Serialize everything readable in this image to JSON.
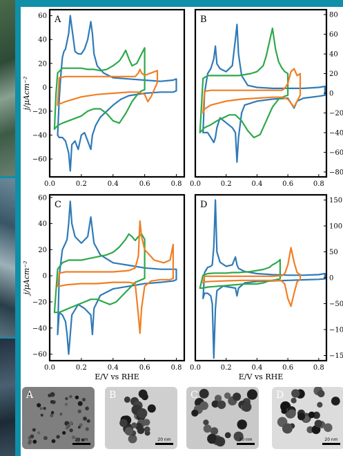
{
  "chart_data": [
    {
      "type": "line",
      "panel_label": "A",
      "xlabel": "",
      "ylabel": "j/μAcm⁻²",
      "xlim": [
        0.0,
        0.85
      ],
      "ylim": [
        -75,
        65
      ],
      "yticks": [
        -60,
        -40,
        -20,
        0,
        20,
        40,
        60
      ],
      "yaxis_side": "left",
      "xticks": [
        0.0,
        0.2,
        0.4,
        0.6,
        0.8
      ],
      "series": [
        {
          "color": "#2f7ab8",
          "x": [
            0.05,
            0.06,
            0.07,
            0.08,
            0.09,
            0.1,
            0.12,
            0.13,
            0.14,
            0.16,
            0.18,
            0.2,
            0.22,
            0.24,
            0.26,
            0.27,
            0.28,
            0.3,
            0.34,
            0.4,
            0.5,
            0.6,
            0.7,
            0.78,
            0.8,
            0.8,
            0.78,
            0.7,
            0.6,
            0.5,
            0.45,
            0.4,
            0.36,
            0.32,
            0.29,
            0.27,
            0.26,
            0.24,
            0.22,
            0.2,
            0.18,
            0.16,
            0.14,
            0.13,
            0.12,
            0.1,
            0.08,
            0.06,
            0.05
          ],
          "y": [
            -40,
            -10,
            10,
            25,
            30,
            32,
            45,
            60,
            50,
            30,
            28,
            28,
            32,
            40,
            55,
            45,
            28,
            18,
            12,
            8,
            7,
            6,
            5,
            6,
            7,
            -3,
            -4,
            -4,
            -5,
            -7,
            -10,
            -15,
            -20,
            -25,
            -32,
            -40,
            -52,
            -45,
            -38,
            -40,
            -52,
            -45,
            -48,
            -70,
            -55,
            -45,
            -42,
            -42,
            -40
          ]
        },
        {
          "color": "#2ea84a",
          "x": [
            0.03,
            0.04,
            0.05,
            0.08,
            0.12,
            0.16,
            0.2,
            0.24,
            0.28,
            0.32,
            0.36,
            0.4,
            0.44,
            0.46,
            0.48,
            0.5,
            0.52,
            0.55,
            0.58,
            0.6,
            0.6,
            0.58,
            0.56,
            0.52,
            0.48,
            0.44,
            0.4,
            0.36,
            0.32,
            0.28,
            0.24,
            0.2,
            0.16,
            0.12,
            0.08,
            0.05,
            0.03
          ],
          "y": [
            -35,
            -5,
            12,
            16,
            16,
            16,
            16,
            15,
            15,
            14,
            15,
            18,
            22,
            26,
            31,
            24,
            18,
            20,
            28,
            33,
            -2,
            -3,
            -5,
            -12,
            -22,
            -30,
            -28,
            -22,
            -18,
            -18,
            -20,
            -24,
            -26,
            -28,
            -30,
            -32,
            -35
          ]
        },
        {
          "color": "#f07f24",
          "x": [
            0.05,
            0.06,
            0.1,
            0.2,
            0.3,
            0.4,
            0.5,
            0.54,
            0.56,
            0.57,
            0.58,
            0.6,
            0.64,
            0.68,
            0.68,
            0.66,
            0.64,
            0.62,
            0.6,
            0.56,
            0.5,
            0.4,
            0.3,
            0.2,
            0.1,
            0.06,
            0.05
          ],
          "y": [
            -15,
            8,
            9,
            9,
            9,
            9,
            9,
            9,
            12,
            15,
            12,
            10,
            12,
            14,
            4,
            -2,
            -8,
            -12,
            -6,
            -4,
            -4,
            -5,
            -6,
            -8,
            -12,
            -14,
            -15
          ]
        }
      ]
    },
    {
      "type": "line",
      "panel_label": "B",
      "xlabel": "",
      "ylabel": "",
      "xlim": [
        0.0,
        0.85
      ],
      "ylim": [
        -85,
        85
      ],
      "yticks": [
        -80,
        -60,
        -40,
        -20,
        0,
        20,
        40,
        60,
        80
      ],
      "yaxis_side": "right",
      "xticks": [
        0.0,
        0.2,
        0.4,
        0.6,
        0.8
      ],
      "series": [
        {
          "color": "#2f7ab8",
          "x": [
            0.05,
            0.06,
            0.08,
            0.1,
            0.12,
            0.13,
            0.14,
            0.16,
            0.2,
            0.24,
            0.26,
            0.27,
            0.28,
            0.3,
            0.34,
            0.4,
            0.5,
            0.6,
            0.7,
            0.8,
            0.84,
            0.84,
            0.8,
            0.7,
            0.66,
            0.64,
            0.62,
            0.6,
            0.5,
            0.4,
            0.32,
            0.3,
            0.28,
            0.27,
            0.26,
            0.24,
            0.2,
            0.16,
            0.14,
            0.13,
            0.12,
            0.1,
            0.08,
            0.06,
            0.05
          ],
          "y": [
            -40,
            0,
            20,
            25,
            35,
            48,
            30,
            25,
            22,
            28,
            55,
            70,
            40,
            18,
            8,
            6,
            5,
            5,
            5,
            6,
            7,
            -2,
            -3,
            -5,
            -8,
            -15,
            -10,
            -5,
            -6,
            -8,
            -12,
            -20,
            -45,
            -70,
            -40,
            -35,
            -30,
            -25,
            -35,
            -45,
            -50,
            -45,
            -40,
            -40,
            -40
          ]
        },
        {
          "color": "#2ea84a",
          "x": [
            0.03,
            0.05,
            0.08,
            0.12,
            0.16,
            0.2,
            0.24,
            0.28,
            0.32,
            0.36,
            0.4,
            0.44,
            0.46,
            0.48,
            0.5,
            0.52,
            0.54,
            0.56,
            0.58,
            0.6,
            0.6,
            0.58,
            0.54,
            0.5,
            0.46,
            0.42,
            0.38,
            0.34,
            0.3,
            0.26,
            0.22,
            0.18,
            0.14,
            0.1,
            0.06,
            0.03
          ],
          "y": [
            -40,
            15,
            18,
            18,
            18,
            18,
            18,
            18,
            19,
            20,
            22,
            28,
            38,
            52,
            66,
            45,
            32,
            26,
            22,
            20,
            -2,
            -3,
            -6,
            -14,
            -28,
            -42,
            -45,
            -38,
            -28,
            -22,
            -22,
            -25,
            -28,
            -32,
            -35,
            -40
          ]
        },
        {
          "color": "#f07f24",
          "x": [
            0.05,
            0.06,
            0.1,
            0.2,
            0.3,
            0.4,
            0.5,
            0.56,
            0.58,
            0.6,
            0.62,
            0.64,
            0.66,
            0.68,
            0.68,
            0.66,
            0.64,
            0.62,
            0.6,
            0.56,
            0.5,
            0.4,
            0.3,
            0.2,
            0.1,
            0.06,
            0.05
          ],
          "y": [
            -20,
            2,
            3,
            3,
            3,
            3,
            3,
            3,
            5,
            10,
            22,
            25,
            18,
            20,
            -2,
            -8,
            -14,
            -10,
            -6,
            -4,
            -4,
            -5,
            -6,
            -8,
            -12,
            -16,
            -20
          ]
        }
      ]
    },
    {
      "type": "line",
      "panel_label": "C",
      "xlabel": "E/V vs RHE",
      "ylabel": "j/μAcm⁻²",
      "xlim": [
        0.0,
        0.85
      ],
      "ylim": [
        -65,
        62
      ],
      "yticks": [
        -60,
        -40,
        -20,
        0,
        20,
        40,
        60
      ],
      "yaxis_side": "left",
      "xticks": [
        0.0,
        0.2,
        0.4,
        0.6,
        0.8
      ],
      "series": [
        {
          "color": "#2f7ab8",
          "x": [
            0.05,
            0.06,
            0.08,
            0.1,
            0.11,
            0.12,
            0.13,
            0.14,
            0.16,
            0.2,
            0.24,
            0.26,
            0.27,
            0.28,
            0.32,
            0.4,
            0.5,
            0.6,
            0.7,
            0.78,
            0.8,
            0.8,
            0.78,
            0.7,
            0.6,
            0.5,
            0.4,
            0.32,
            0.28,
            0.27,
            0.26,
            0.22,
            0.18,
            0.14,
            0.12,
            0.11,
            0.1,
            0.08,
            0.06,
            0.05
          ],
          "y": [
            -45,
            0,
            20,
            25,
            28,
            40,
            57,
            40,
            30,
            25,
            30,
            45,
            35,
            25,
            16,
            10,
            8,
            6,
            5,
            5,
            5,
            -3,
            -4,
            -5,
            -6,
            -8,
            -10,
            -15,
            -25,
            -45,
            -30,
            -25,
            -22,
            -30,
            -60,
            -45,
            -35,
            -30,
            -28,
            -45
          ]
        },
        {
          "color": "#2ea84a",
          "x": [
            0.03,
            0.05,
            0.08,
            0.12,
            0.16,
            0.2,
            0.24,
            0.28,
            0.32,
            0.36,
            0.4,
            0.44,
            0.48,
            0.5,
            0.52,
            0.54,
            0.56,
            0.58,
            0.6,
            0.6,
            0.58,
            0.54,
            0.5,
            0.46,
            0.42,
            0.38,
            0.34,
            0.3,
            0.26,
            0.22,
            0.18,
            0.14,
            0.1,
            0.06,
            0.03
          ],
          "y": [
            -28,
            5,
            10,
            12,
            12,
            12,
            13,
            14,
            15,
            16,
            18,
            22,
            28,
            32,
            30,
            27,
            30,
            32,
            28,
            -2,
            -3,
            -5,
            -10,
            -15,
            -20,
            -22,
            -20,
            -18,
            -18,
            -20,
            -22,
            -24,
            -26,
            -28,
            -28
          ]
        },
        {
          "color": "#f07f24",
          "x": [
            0.05,
            0.06,
            0.1,
            0.2,
            0.3,
            0.4,
            0.5,
            0.54,
            0.56,
            0.57,
            0.58,
            0.6,
            0.66,
            0.72,
            0.76,
            0.78,
            0.78,
            0.76,
            0.7,
            0.64,
            0.6,
            0.58,
            0.57,
            0.56,
            0.54,
            0.5,
            0.4,
            0.3,
            0.2,
            0.1,
            0.06,
            0.05
          ],
          "y": [
            -8,
            2,
            3,
            3,
            3,
            3,
            4,
            6,
            15,
            42,
            30,
            20,
            12,
            10,
            12,
            24,
            -2,
            -3,
            -3,
            -4,
            -8,
            -25,
            -44,
            -30,
            -6,
            -5,
            -5,
            -6,
            -6,
            -7,
            -8,
            -8
          ]
        }
      ]
    },
    {
      "type": "line",
      "panel_label": "D",
      "xlabel": "E/V vs RHE",
      "ylabel": "",
      "xlim": [
        0.0,
        0.85
      ],
      "ylim": [
        -160,
        160
      ],
      "yticks": [
        -150,
        -100,
        -50,
        0,
        50,
        100,
        150
      ],
      "yaxis_side": "right",
      "xticks": [
        0.0,
        0.2,
        0.4,
        0.6,
        0.8
      ],
      "series": [
        {
          "color": "#2f7ab8",
          "x": [
            0.05,
            0.06,
            0.08,
            0.1,
            0.11,
            0.12,
            0.13,
            0.14,
            0.16,
            0.2,
            0.24,
            0.26,
            0.27,
            0.28,
            0.32,
            0.4,
            0.5,
            0.6,
            0.7,
            0.8,
            0.84,
            0.84,
            0.8,
            0.7,
            0.6,
            0.5,
            0.4,
            0.32,
            0.28,
            0.27,
            0.26,
            0.22,
            0.18,
            0.14,
            0.13,
            0.12,
            0.11,
            0.1,
            0.08,
            0.06,
            0.05
          ],
          "y": [
            -40,
            10,
            20,
            22,
            25,
            60,
            150,
            50,
            30,
            22,
            25,
            40,
            25,
            18,
            12,
            8,
            6,
            5,
            5,
            6,
            8,
            -2,
            -3,
            -4,
            -5,
            -6,
            -7,
            -10,
            -20,
            -35,
            -20,
            -18,
            -16,
            -25,
            -60,
            -155,
            -50,
            -35,
            -30,
            -30,
            -40
          ]
        },
        {
          "color": "#2ea84a",
          "x": [
            0.03,
            0.05,
            0.08,
            0.12,
            0.16,
            0.2,
            0.24,
            0.28,
            0.32,
            0.36,
            0.4,
            0.44,
            0.48,
            0.5,
            0.52,
            0.54,
            0.55,
            0.55,
            0.52,
            0.48,
            0.44,
            0.4,
            0.36,
            0.32,
            0.28,
            0.24,
            0.2,
            0.16,
            0.12,
            0.08,
            0.05,
            0.03
          ],
          "y": [
            -20,
            5,
            8,
            9,
            9,
            9,
            10,
            10,
            11,
            12,
            14,
            16,
            20,
            25,
            28,
            32,
            35,
            -2,
            -4,
            -6,
            -10,
            -12,
            -12,
            -12,
            -13,
            -14,
            -15,
            -16,
            -17,
            -18,
            -20,
            -20
          ]
        },
        {
          "color": "#f07f24",
          "x": [
            0.05,
            0.06,
            0.1,
            0.2,
            0.3,
            0.4,
            0.5,
            0.56,
            0.58,
            0.6,
            0.62,
            0.64,
            0.66,
            0.68,
            0.68,
            0.66,
            0.64,
            0.62,
            0.6,
            0.58,
            0.56,
            0.5,
            0.4,
            0.3,
            0.2,
            0.1,
            0.06,
            0.05
          ],
          "y": [
            -10,
            3,
            3,
            3,
            3,
            3,
            3,
            4,
            8,
            25,
            58,
            30,
            10,
            6,
            -3,
            -8,
            -30,
            -55,
            -40,
            -12,
            -6,
            -5,
            -5,
            -5,
            -6,
            -7,
            -8,
            -10
          ]
        }
      ]
    }
  ],
  "tem_images": [
    {
      "letter": "A",
      "scale_label": "20 nm",
      "tone": "#7f7f7f"
    },
    {
      "letter": "B",
      "scale_label": "20 nm",
      "tone": "#cfcfcf"
    },
    {
      "letter": "C",
      "scale_label": "20 nm",
      "tone": "#c9c9c9"
    },
    {
      "letter": "D",
      "scale_label": "20 nm",
      "tone": "#dcdcdc"
    }
  ],
  "colors": {
    "background": "#0f8fa8",
    "platinum_like_blue": "#2f7ab8",
    "green": "#2ea84a",
    "orange": "#f07f24"
  }
}
